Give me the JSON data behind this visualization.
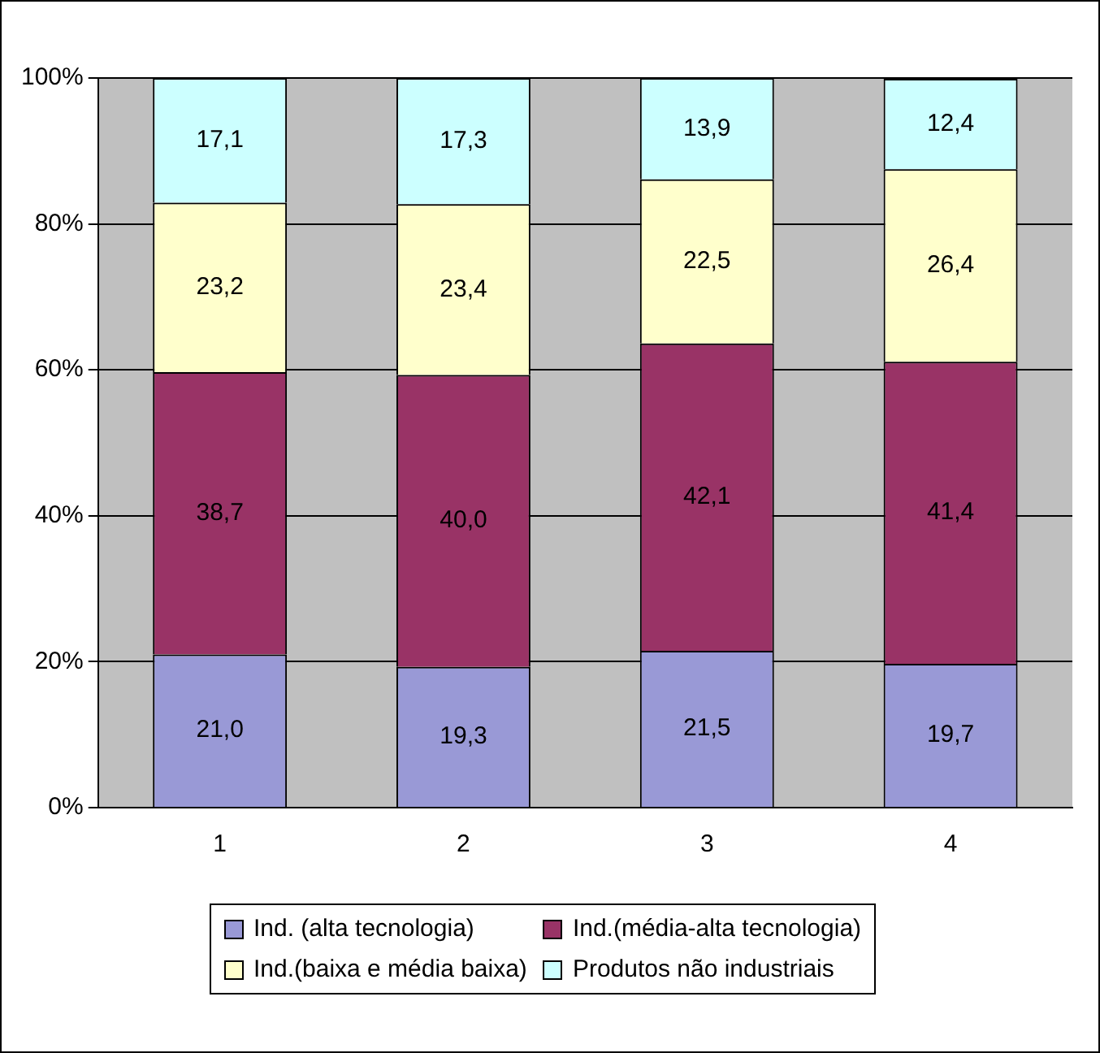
{
  "chart_data": {
    "type": "bar",
    "stacked": true,
    "categories": [
      "1",
      "2",
      "3",
      "4"
    ],
    "series": [
      {
        "name": "Ind. (alta tecnologia)",
        "color": "#9999d6",
        "values": [
          21.0,
          19.3,
          21.5,
          19.7
        ],
        "value_labels": [
          "21,0",
          "19,3",
          "21,5",
          "19,7"
        ]
      },
      {
        "name": "Ind.(média-alta tecnologia)",
        "color": "#993366",
        "values": [
          38.7,
          40.0,
          42.1,
          41.4
        ],
        "value_labels": [
          "38,7",
          "40,0",
          "42,1",
          "41,4"
        ]
      },
      {
        "name": "Ind.(baixa e média baixa)",
        "color": "#ffffcc",
        "values": [
          23.2,
          23.4,
          22.5,
          26.4
        ],
        "value_labels": [
          "23,2",
          "23,4",
          "22,5",
          "26,4"
        ]
      },
      {
        "name": "Produtos não industriais",
        "color": "#ccffff",
        "values": [
          17.1,
          17.3,
          13.9,
          12.4
        ],
        "value_labels": [
          "17,1",
          "17,3",
          "13,9",
          "12,4"
        ]
      }
    ],
    "ylim": [
      0,
      100
    ],
    "yticks": [
      {
        "value": 0,
        "label": "0%"
      },
      {
        "value": 20,
        "label": "20%"
      },
      {
        "value": 40,
        "label": "40%"
      },
      {
        "value": 60,
        "label": "60%"
      },
      {
        "value": 80,
        "label": "80%"
      },
      {
        "value": 100,
        "label": "100%"
      }
    ],
    "grid": "y",
    "legend": "bottom"
  }
}
